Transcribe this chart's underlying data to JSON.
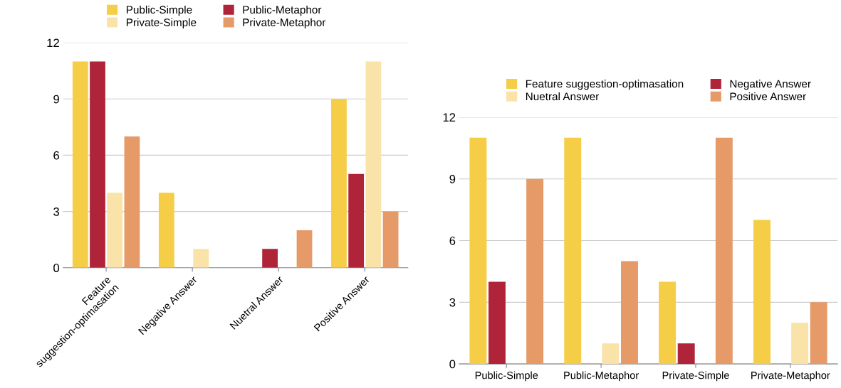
{
  "chart_data": [
    {
      "type": "bar",
      "categories": [
        "Feature\nsuggestion-optimasation",
        "Negative Answer",
        "Nuetral Answer",
        "Positive Answer"
      ],
      "ylim": [
        0,
        12
      ],
      "yticks": [
        0,
        3,
        6,
        9,
        12
      ],
      "grid": "y",
      "legend": "top",
      "series": [
        {
          "name": "Public-Simple",
          "color": "#f5cd47",
          "values": [
            11,
            4,
            0,
            9
          ]
        },
        {
          "name": "Public-Metaphor",
          "color": "#b0243a",
          "values": [
            11,
            0,
            1,
            5
          ]
        },
        {
          "name": "Private-Simple",
          "color": "#f9e3a8",
          "values": [
            4,
            1,
            0,
            11
          ]
        },
        {
          "name": "Private-Metaphor",
          "color": "#e59a68",
          "values": [
            7,
            0,
            2,
            3
          ]
        }
      ]
    },
    {
      "type": "bar",
      "categories": [
        "Public-Simple",
        "Public-Metaphor",
        "Private-Simple",
        "Private-Metaphor"
      ],
      "ylim": [
        0,
        12
      ],
      "yticks": [
        0,
        3,
        6,
        9,
        12
      ],
      "grid": "y",
      "legend": "top",
      "series": [
        {
          "name": "Feature suggestion-optimasation",
          "color": "#f5cd47",
          "values": [
            11,
            11,
            4,
            7
          ]
        },
        {
          "name": "Negative Answer",
          "color": "#b0243a",
          "values": [
            4,
            0,
            1,
            0
          ]
        },
        {
          "name": "Nuetral Answer",
          "color": "#f9e3a8",
          "values": [
            0,
            1,
            0,
            2
          ]
        },
        {
          "name": "Positive Answer",
          "color": "#e59a68",
          "values": [
            9,
            5,
            11,
            3
          ]
        }
      ]
    }
  ]
}
